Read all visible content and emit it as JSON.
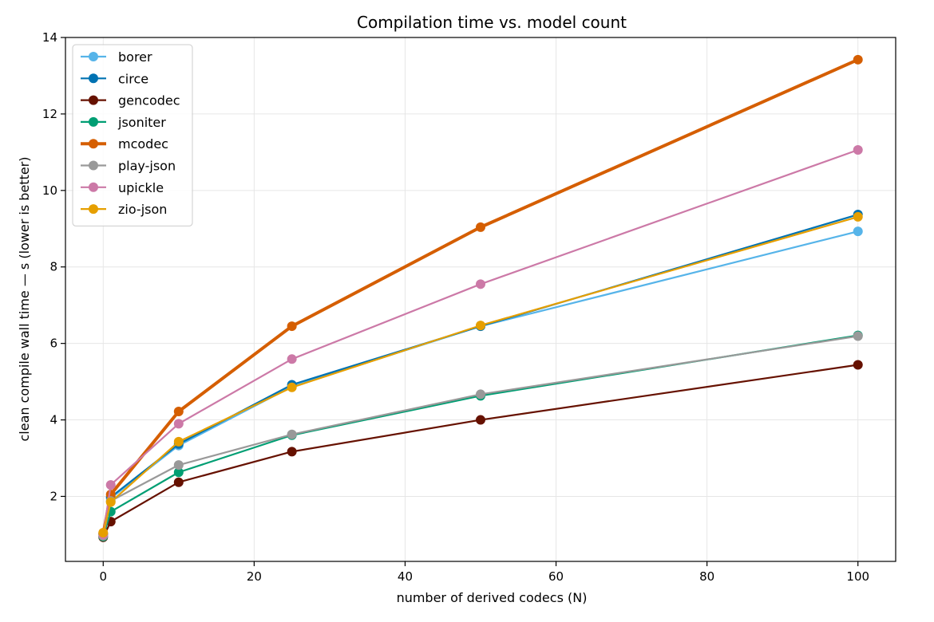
{
  "chart_data": {
    "type": "line",
    "title": "Compilation time vs. model count",
    "xlabel": "number of derived codecs (N)",
    "ylabel": "clean compile wall time — s (lower is better)",
    "xlim": [
      -5,
      105
    ],
    "ylim": [
      0.3,
      14.0
    ],
    "xticks": [
      0,
      20,
      40,
      60,
      80,
      100
    ],
    "yticks": [
      2,
      4,
      6,
      8,
      10,
      12,
      14
    ],
    "grid": true,
    "legend_position": "upper-left",
    "x": [
      0,
      1,
      10,
      25,
      50,
      100
    ],
    "series": [
      {
        "name": "borer",
        "color": "#56b4e9",
        "emphasis": false,
        "values": [
          1.0,
          1.95,
          3.33,
          4.87,
          6.45,
          8.93
        ]
      },
      {
        "name": "circe",
        "color": "#0072b2",
        "emphasis": false,
        "values": [
          1.02,
          1.98,
          3.37,
          4.92,
          6.45,
          9.37
        ]
      },
      {
        "name": "gencodec",
        "color": "#661100",
        "emphasis": false,
        "values": [
          0.93,
          1.34,
          2.37,
          3.17,
          4.0,
          5.44
        ]
      },
      {
        "name": "jsoniter",
        "color": "#009e73",
        "emphasis": false,
        "values": [
          0.95,
          1.6,
          2.63,
          3.6,
          4.63,
          6.21
        ]
      },
      {
        "name": "mcodec",
        "color": "#d55e00",
        "emphasis": true,
        "values": [
          1.02,
          2.05,
          4.22,
          6.45,
          9.04,
          13.42
        ]
      },
      {
        "name": "play-json",
        "color": "#999999",
        "emphasis": false,
        "values": [
          0.97,
          1.88,
          2.82,
          3.62,
          4.67,
          6.19
        ]
      },
      {
        "name": "upickle",
        "color": "#cc79a7",
        "emphasis": false,
        "values": [
          1.0,
          2.3,
          3.9,
          5.59,
          7.55,
          11.06
        ]
      },
      {
        "name": "zio-json",
        "color": "#e69f00",
        "emphasis": false,
        "values": [
          1.05,
          1.85,
          3.43,
          4.85,
          6.47,
          9.31
        ]
      }
    ]
  }
}
